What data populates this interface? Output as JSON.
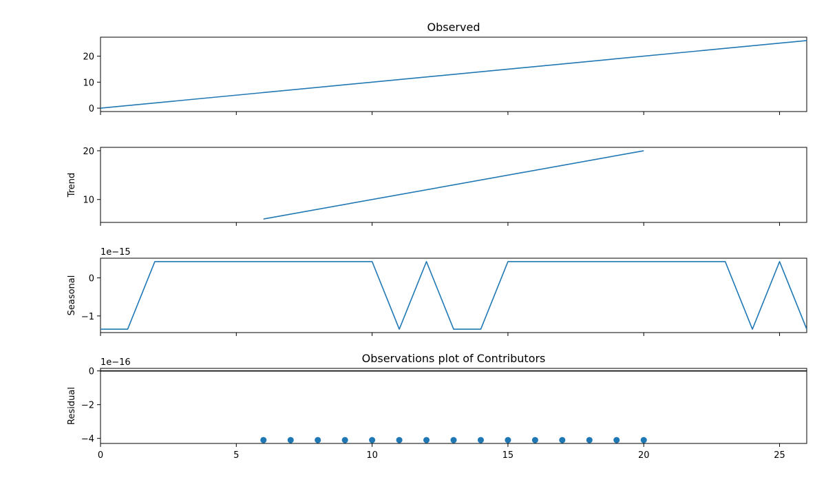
{
  "chart_data": [
    {
      "type": "line",
      "title": "Observed",
      "ylabel": "",
      "xlim": [
        0,
        26
      ],
      "ylim": [
        -1.3,
        27.3
      ],
      "yticks": [
        0,
        10,
        20
      ],
      "ytick_labels": [
        "0",
        "10",
        "20"
      ],
      "xticks": [
        0,
        5,
        10,
        15,
        20,
        25
      ],
      "show_xtick_labels": false,
      "offset_text": "",
      "series": [
        {
          "color": "#1f77b4",
          "x": [
            0,
            26
          ],
          "y": [
            0,
            26
          ]
        }
      ]
    },
    {
      "type": "line",
      "title": "",
      "ylabel": "Trend",
      "xlim": [
        0,
        26
      ],
      "ylim": [
        5.3,
        20.7
      ],
      "yticks": [
        10,
        20
      ],
      "ytick_labels": [
        "10",
        "20"
      ],
      "xticks": [
        0,
        5,
        10,
        15,
        20,
        25
      ],
      "show_xtick_labels": false,
      "offset_text": "",
      "series": [
        {
          "color": "#1f77b4",
          "x": [
            6,
            20
          ],
          "y": [
            6,
            20
          ]
        }
      ]
    },
    {
      "type": "line",
      "title": "",
      "ylabel": "Seasonal",
      "xlim": [
        0,
        26
      ],
      "ylim": [
        -1.437,
        0.517
      ],
      "yticks": [
        0,
        -1
      ],
      "ytick_labels": [
        "0",
        "−1"
      ],
      "xticks": [
        0,
        5,
        10,
        15,
        20,
        25
      ],
      "show_xtick_labels": false,
      "offset_text": "1e−15",
      "series": [
        {
          "color": "#1f77b4",
          "x": [
            0,
            1,
            2,
            3,
            4,
            5,
            6,
            7,
            8,
            9,
            10,
            11,
            12,
            13,
            14,
            15,
            16,
            17,
            18,
            19,
            20,
            21,
            22,
            23,
            24,
            25,
            26
          ],
          "y": [
            -1.348,
            -1.348,
            0.428,
            0.428,
            0.428,
            0.428,
            0.428,
            0.428,
            0.428,
            0.428,
            0.428,
            -1.348,
            0.428,
            -1.348,
            -1.348,
            0.428,
            0.428,
            0.428,
            0.428,
            0.428,
            0.428,
            0.428,
            0.428,
            0.428,
            -1.348,
            0.428,
            -1.348
          ]
        }
      ]
    },
    {
      "type": "scatter",
      "title": "Observations plot of Contributors",
      "ylabel": "Residual",
      "xlim": [
        0,
        26
      ],
      "ylim": [
        -4.3,
        0.15
      ],
      "yticks": [
        0,
        -2,
        -4
      ],
      "ytick_labels": [
        "0",
        "−2",
        "−4"
      ],
      "xticks": [
        0,
        5,
        10,
        15,
        20,
        25
      ],
      "xtick_labels": [
        "0",
        "5",
        "10",
        "15",
        "20",
        "25"
      ],
      "show_xtick_labels": true,
      "offset_text": "1e−16",
      "hline": 0,
      "series": [
        {
          "color": "#1f77b4",
          "x": [
            6,
            7,
            8,
            9,
            10,
            11,
            12,
            13,
            14,
            15,
            16,
            17,
            18,
            19,
            20
          ],
          "y": [
            -4.1,
            -4.1,
            -4.1,
            -4.1,
            -4.1,
            -4.1,
            -4.1,
            -4.1,
            -4.1,
            -4.1,
            -4.1,
            -4.1,
            -4.1,
            -4.1,
            -4.1
          ]
        }
      ]
    }
  ]
}
